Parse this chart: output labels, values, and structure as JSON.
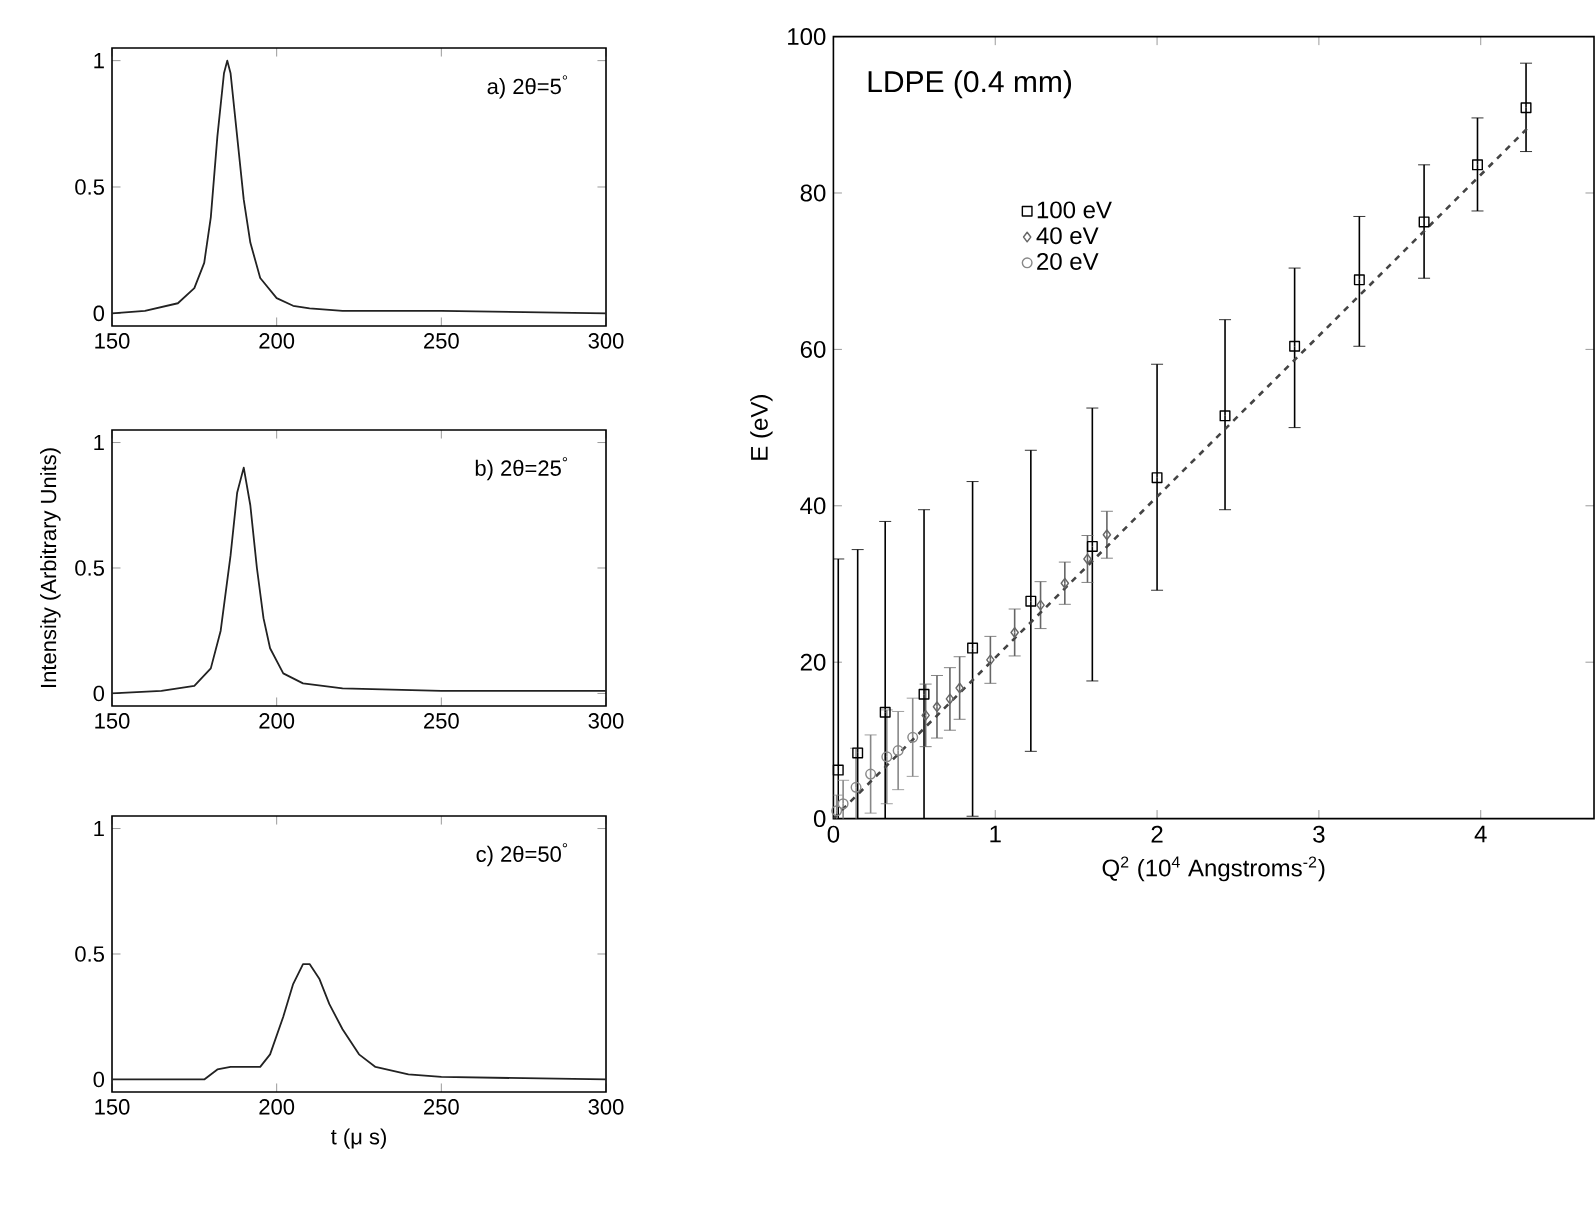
{
  "chart_data": [
    {
      "type": "line",
      "xlim": [
        150,
        300
      ],
      "ylim": [
        -0.05,
        1.05
      ],
      "xticks": [
        150,
        200,
        250,
        300
      ],
      "yticks": [
        0,
        0.5,
        1
      ],
      "annotations": [
        "a) 2θ=5$^{°}$"
      ],
      "series": [
        {
          "color": "#222222",
          "x": [
            150,
            160,
            170,
            175,
            178,
            180,
            182,
            184,
            185,
            186,
            188,
            190,
            192,
            195,
            200,
            205,
            210,
            220,
            250,
            300
          ],
          "values": [
            0,
            0.01,
            0.04,
            0.1,
            0.2,
            0.38,
            0.7,
            0.95,
            1.0,
            0.95,
            0.7,
            0.45,
            0.28,
            0.14,
            0.06,
            0.03,
            0.02,
            0.01,
            0.01,
            0
          ]
        }
      ]
    },
    {
      "type": "line",
      "xlim": [
        150,
        300
      ],
      "ylim": [
        -0.05,
        1.05
      ],
      "xticks": [
        150,
        200,
        250,
        300
      ],
      "yticks": [
        0,
        0.5,
        1
      ],
      "ylabel": "Intensity (Arbitrary Units)",
      "annotations": [
        "b) 2θ=25$^{°}$"
      ],
      "series": [
        {
          "color": "#222222",
          "x": [
            150,
            165,
            175,
            180,
            183,
            186,
            188,
            190,
            192,
            194,
            196,
            198,
            202,
            208,
            220,
            250,
            300
          ],
          "values": [
            0,
            0.01,
            0.03,
            0.1,
            0.25,
            0.55,
            0.8,
            0.9,
            0.75,
            0.5,
            0.3,
            0.18,
            0.08,
            0.04,
            0.02,
            0.01,
            0.01
          ]
        }
      ]
    },
    {
      "type": "line",
      "xlim": [
        150,
        300
      ],
      "ylim": [
        -0.05,
        1.05
      ],
      "xticks": [
        150,
        200,
        250,
        300
      ],
      "yticks": [
        0,
        0.5,
        1
      ],
      "xlabel": "t (μ s)",
      "annotations": [
        "c) 2θ=50$^{°}$"
      ],
      "series": [
        {
          "color": "#222222",
          "x": [
            150,
            178,
            182,
            186,
            195,
            198,
            202,
            205,
            208,
            210,
            213,
            216,
            220,
            225,
            230,
            240,
            250,
            300
          ],
          "values": [
            0,
            0,
            0.04,
            0.05,
            0.05,
            0.1,
            0.25,
            0.38,
            0.46,
            0.46,
            0.4,
            0.3,
            0.2,
            0.1,
            0.05,
            0.02,
            0.01,
            0
          ]
        }
      ]
    },
    {
      "type": "scatter",
      "xlim": [
        0,
        4.7
      ],
      "ylim": [
        0,
        100
      ],
      "xticks": [
        0,
        1,
        2,
        3,
        4
      ],
      "yticks": [
        0,
        20,
        40,
        60,
        80,
        100
      ],
      "xlabel": "Q$^{2}$ (10$^{4}$ Angstroms$^{-2}$)",
      "ylabel": "E (eV)",
      "annotations": [
        "LDPE (0.4 mm)"
      ],
      "legend": "top left",
      "series": [
        {
          "name": "100 eV",
          "color": "#000000",
          "marker": "square",
          "x": [
            0.03,
            0.15,
            0.32,
            0.56,
            0.86,
            1.22,
            1.6,
            2.0,
            2.42,
            2.85,
            3.25,
            3.65,
            3.98,
            4.28
          ],
          "values": [
            6.2,
            8.4,
            13.6,
            15.9,
            21.8,
            27.8,
            34.8,
            43.6,
            51.5,
            60.4,
            68.9,
            76.3,
            83.6,
            90.9
          ],
          "errors": [
            [
              0,
              33.2
            ],
            [
              0,
              34.4
            ],
            [
              0,
              38
            ],
            [
              0,
              39.5
            ],
            [
              0.3,
              43.1
            ],
            [
              8.6,
              47.1
            ],
            [
              17.6,
              52.5
            ],
            [
              29.2,
              58.1
            ],
            [
              39.5,
              63.8
            ],
            [
              50,
              70.4
            ],
            [
              60.4,
              77
            ],
            [
              69.1,
              83.6
            ],
            [
              77.7,
              89.6
            ],
            [
              85.3,
              96.6
            ]
          ]
        },
        {
          "name": "40 eV",
          "color": "#666666",
          "marker": "diamond",
          "x": [
            0.57,
            0.64,
            0.72,
            0.78,
            0.97,
            1.12,
            1.28,
            1.43,
            1.57,
            1.69
          ],
          "values": [
            13.2,
            14.3,
            15.3,
            16.7,
            20.3,
            23.8,
            27.3,
            30.1,
            33.2,
            36.3
          ],
          "errors": [
            4,
            4,
            4,
            4,
            3,
            3,
            3,
            2.7,
            3,
            3
          ]
        },
        {
          "name": "20 eV",
          "color": "#888888",
          "marker": "circle",
          "x": [
            0.02,
            0.06,
            0.14,
            0.23,
            0.33,
            0.4,
            0.49
          ],
          "values": [
            1.0,
            1.9,
            4.0,
            5.7,
            7.9,
            8.7,
            10.4
          ],
          "errors": [
            2,
            3,
            5,
            5,
            6,
            5,
            5
          ]
        },
        {
          "type": "line",
          "color": "#444444",
          "line_style": "dashed",
          "marker": "none",
          "x": [
            0,
            4.3
          ],
          "values": [
            0,
            88.5
          ]
        }
      ]
    }
  ]
}
